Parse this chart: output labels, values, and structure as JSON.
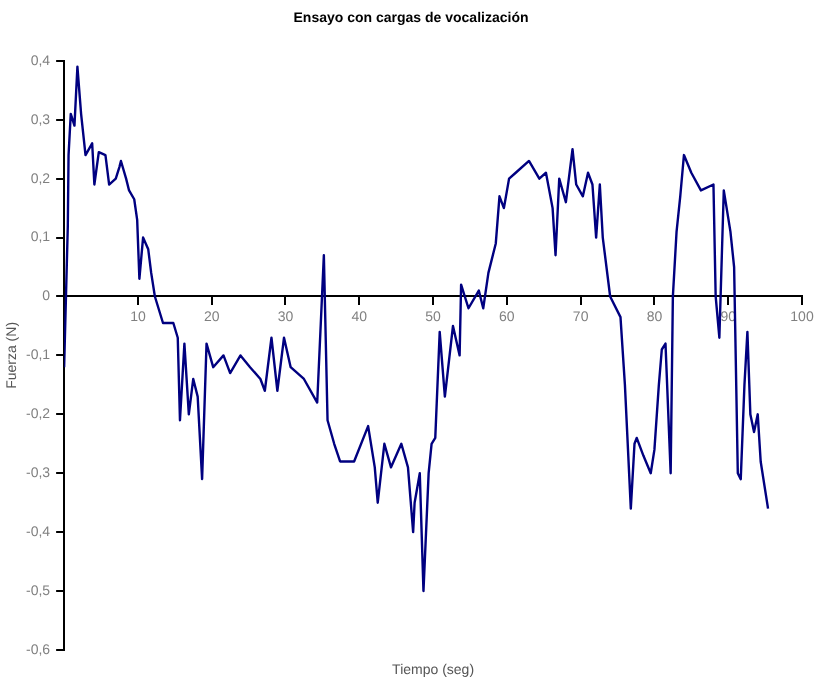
{
  "chart_data": {
    "type": "line",
    "title": "Ensayo con cargas de vocalización",
    "xlabel": "Tiempo (seg)",
    "ylabel": "Fuerza (N)",
    "xlim": [
      0,
      100
    ],
    "xticks": [
      {
        "value": 0,
        "label": null
      },
      10,
      20,
      30,
      40,
      50,
      60,
      70,
      80,
      90,
      100
    ],
    "ylim": [
      -0.6,
      0.4
    ],
    "yticks": [
      {
        "value": -0.6,
        "label": "-0,6"
      },
      {
        "value": -0.5,
        "label": "-0,5"
      },
      {
        "value": -0.4,
        "label": "-0,4"
      },
      {
        "value": -0.3,
        "label": "-0,3"
      },
      {
        "value": -0.2,
        "label": "-0,2"
      },
      {
        "value": -0.1,
        "label": "-0,1"
      },
      {
        "value": 0,
        "label": "0"
      },
      {
        "value": 0.1,
        "label": "0,1"
      },
      {
        "value": 0.2,
        "label": "0,2"
      },
      {
        "value": 0.3,
        "label": "0,3"
      },
      {
        "value": 0.4,
        "label": "0,4"
      }
    ],
    "grid": false,
    "legend": false,
    "marker": "none",
    "line_style": "solid",
    "series": [
      {
        "color": "#000080",
        "x": [
          0,
          0.5,
          0.6,
          0.9,
          1.4,
          1.8,
          2.3,
          2.9,
          3.8,
          4.1,
          4.7,
          5.6,
          6.1,
          7,
          7.5,
          7.7,
          8.4,
          8.8,
          9.5,
          9.9,
          10.2,
          10.7,
          11.4,
          11.8,
          12.3,
          13.4,
          14.8,
          15.4,
          15.7,
          16.3,
          16.9,
          17.5,
          18.1,
          18.7,
          19.3,
          20.2,
          21.6,
          22.5,
          23.9,
          25.2,
          26.6,
          27.2,
          28.1,
          28.9,
          29.8,
          30.7,
          32.5,
          34.3,
          35.2,
          35.7,
          36.6,
          37.4,
          39.3,
          41.2,
          42.1,
          42.5,
          43.4,
          44.3,
          45.7,
          46.6,
          47.3,
          47.5,
          48.2,
          48.7,
          49.4,
          49.8,
          50.3,
          50.9,
          51.6,
          52.7,
          53.6,
          53.8,
          54.8,
          56.2,
          56.8,
          57.5,
          58.5,
          59,
          59.6,
          60.3,
          61.2,
          63,
          64.4,
          65.3,
          66.2,
          66.6,
          67.1,
          68,
          68.9,
          69.4,
          70.3,
          71,
          71.6,
          72.1,
          72.6,
          73,
          74,
          75.4,
          76,
          76.8,
          77.3,
          77.6,
          78.5,
          79.5,
          80,
          80.6,
          81,
          81.5,
          82.2,
          82.5,
          83,
          83.5,
          84,
          85,
          86.3,
          88,
          88.3,
          88.8,
          89.4,
          90.3,
          90.8,
          91.3,
          91.7,
          92.2,
          92.6,
          93,
          93.5,
          94,
          94.4,
          95.4
        ],
        "values": [
          -0.12,
          0.12,
          0.24,
          0.31,
          0.29,
          0.39,
          0.31,
          0.24,
          0.26,
          0.19,
          0.245,
          0.24,
          0.19,
          0.2,
          0.22,
          0.23,
          0.2,
          0.18,
          0.165,
          0.13,
          0.03,
          0.1,
          0.08,
          0.04,
          0.0,
          -0.045,
          -0.045,
          -0.07,
          -0.21,
          -0.08,
          -0.2,
          -0.14,
          -0.17,
          -0.31,
          -0.08,
          -0.12,
          -0.1,
          -0.13,
          -0.1,
          -0.12,
          -0.14,
          -0.16,
          -0.07,
          -0.16,
          -0.07,
          -0.12,
          -0.14,
          -0.18,
          0.07,
          -0.21,
          -0.25,
          -0.28,
          -0.28,
          -0.22,
          -0.29,
          -0.35,
          -0.25,
          -0.29,
          -0.25,
          -0.29,
          -0.4,
          -0.35,
          -0.3,
          -0.5,
          -0.3,
          -0.25,
          -0.24,
          -0.06,
          -0.17,
          -0.05,
          -0.1,
          0.02,
          -0.02,
          0.01,
          -0.02,
          0.04,
          0.09,
          0.17,
          0.15,
          0.2,
          0.21,
          0.23,
          0.2,
          0.21,
          0.15,
          0.07,
          0.2,
          0.16,
          0.25,
          0.19,
          0.17,
          0.21,
          0.19,
          0.1,
          0.19,
          0.1,
          0.0,
          -0.035,
          -0.15,
          -0.36,
          -0.25,
          -0.24,
          -0.27,
          -0.3,
          -0.26,
          -0.15,
          -0.09,
          -0.08,
          -0.3,
          0.0,
          0.11,
          0.17,
          0.24,
          0.21,
          0.18,
          0.19,
          0.0,
          -0.07,
          0.18,
          0.11,
          0.05,
          -0.3,
          -0.31,
          -0.15,
          -0.06,
          -0.2,
          -0.23,
          -0.2,
          -0.28,
          -0.36
        ]
      }
    ]
  }
}
